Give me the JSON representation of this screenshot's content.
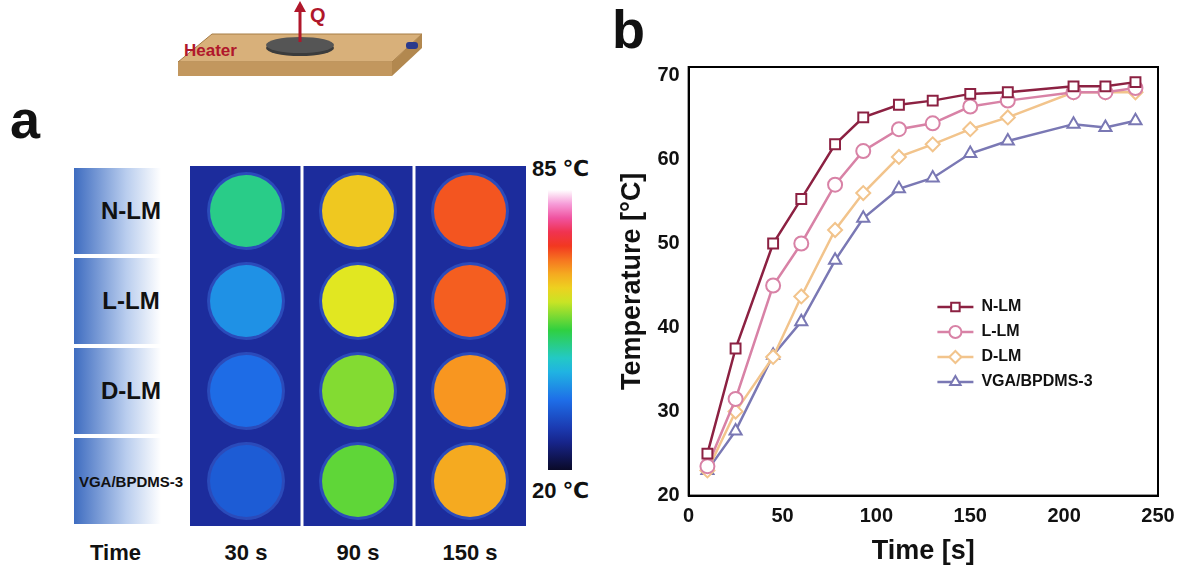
{
  "panel_a": {
    "letter": "a",
    "heater": "Heater",
    "flux": "Q",
    "rows": [
      "N-LM",
      "L-LM",
      "D-LM",
      "VGA/BPDMS-3"
    ],
    "time_label": "Time",
    "times": [
      "30 s",
      "90 s",
      "150 s"
    ],
    "cells": [
      [
        49,
        63,
        70.5
      ],
      [
        39.5,
        60,
        70
      ],
      [
        36,
        56,
        67
      ],
      [
        34,
        54.5,
        65.5
      ]
    ],
    "colorbar": {
      "range": [
        20,
        85
      ],
      "ticks": [
        {
          "value": 85,
          "label": "85 ℃"
        },
        {
          "value": 20,
          "label": "20 ℃"
        }
      ]
    }
  },
  "chart_data": {
    "letter": "b",
    "type": "line",
    "x_label": "Time [s]",
    "y_label": "Temperature [°C]",
    "x": [
      10,
      25,
      45,
      60,
      78,
      93,
      112,
      130,
      150,
      170,
      205,
      222,
      238
    ],
    "series": [
      {
        "name": "N-LM",
        "color": "#8c2142",
        "marker": "square",
        "values": [
          25,
          37.5,
          50,
          55.3,
          61.8,
          65,
          66.5,
          67,
          67.8,
          68,
          68.7,
          68.7,
          69.2
        ]
      },
      {
        "name": "L-LM",
        "color": "#d882a6",
        "marker": "circle",
        "values": [
          23.5,
          31.5,
          45,
          50,
          57,
          61,
          63.6,
          64.3,
          66.3,
          67,
          68,
          68,
          68.5
        ]
      },
      {
        "name": "D-LM",
        "color": "#f2c48c",
        "marker": "diamond",
        "values": [
          23,
          30,
          36.5,
          43.7,
          51.6,
          56,
          60.3,
          61.8,
          63.6,
          65,
          68,
          68,
          68
        ]
      },
      {
        "name": "VGA/BPDMS-3",
        "color": "#7a78b4",
        "marker": "triangle",
        "values": [
          23,
          27.7,
          36.7,
          40.7,
          48,
          53,
          56.5,
          57.8,
          60.7,
          62.2,
          64.2,
          63.8,
          64.6
        ]
      }
    ],
    "xlim": [
      0,
      250
    ],
    "xticks": [
      0,
      50,
      100,
      150,
      200,
      250
    ],
    "ylim": [
      20,
      71
    ],
    "yticks": [
      20,
      30,
      40,
      50,
      60,
      70
    ],
    "grid": false,
    "legend": "lower right"
  }
}
